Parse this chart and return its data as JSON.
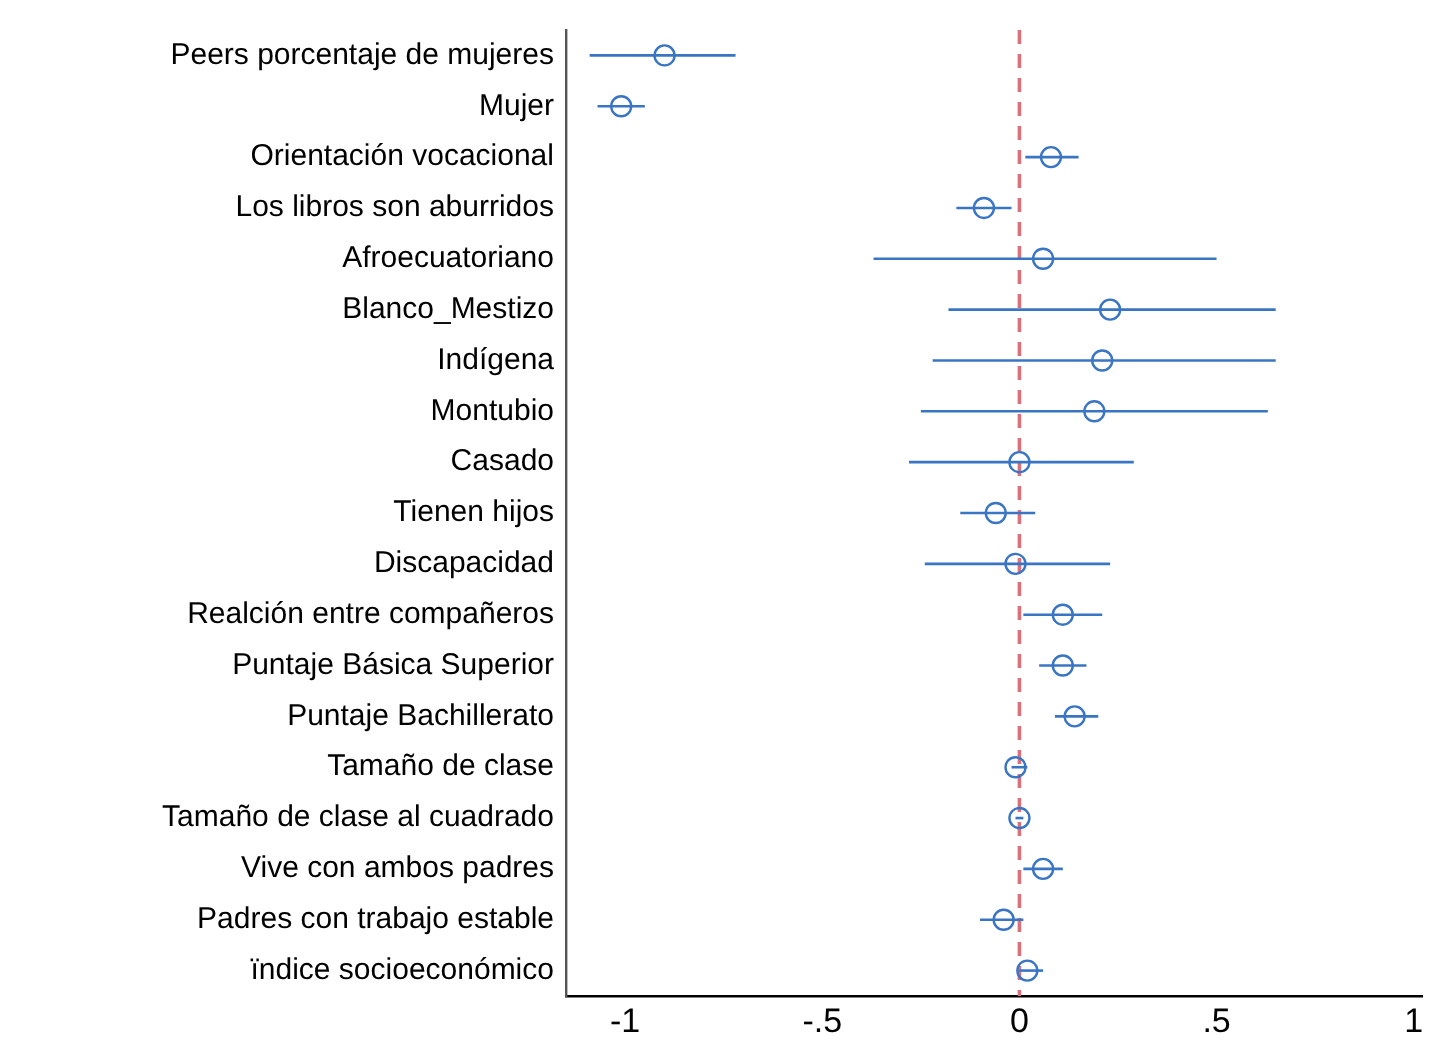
{
  "chart_data": {
    "type": "scatter",
    "categories": [
      "Peers porcentaje de mujeres",
      "Mujer",
      "Orientación vocacional",
      "Los libros son aburridos",
      "Afroecuatoriano",
      "Blanco_Mestizo",
      "Indígena",
      "Montubio",
      "Casado",
      "Tienen hijos",
      "Discapacidad",
      "Realción entre compañeros",
      "Puntaje Básica Superior",
      "Puntaje Bachillerato",
      "Tamaño de clase",
      "Tamaño de clase al cuadrado",
      "Vive con ambos padres",
      "Padres con trabajo estable",
      "ïndice socioeconómico"
    ],
    "orientation": "horizontal",
    "series": [
      {
        "color": "#3a75c4",
        "values": [
          -0.9,
          -1.01,
          0.08,
          -0.09,
          0.06,
          0.23,
          0.21,
          0.19,
          0,
          -0.06,
          -0.01,
          0.11,
          0.11,
          0.14,
          -0.01,
          0,
          0.06,
          -0.04,
          0.02
        ],
        "errors": [
          [
            -1.09,
            -0.72
          ],
          [
            -1.07,
            -0.95
          ],
          [
            0.015,
            0.15
          ],
          [
            -0.16,
            -0.02
          ],
          [
            -0.37,
            0.5
          ],
          [
            -0.18,
            0.65
          ],
          [
            -0.22,
            0.65
          ],
          [
            -0.25,
            0.63
          ],
          [
            -0.28,
            0.29
          ],
          [
            -0.15,
            0.04
          ],
          [
            -0.24,
            0.23
          ],
          [
            0.01,
            0.21
          ],
          [
            0.05,
            0.17
          ],
          [
            0.09,
            0.2
          ],
          [
            -0.02,
            0.02
          ],
          [
            -0.01,
            0.01
          ],
          [
            0.01,
            0.11
          ],
          [
            -0.1,
            0.01
          ],
          [
            0,
            0.06
          ]
        ]
      }
    ],
    "xlim": [
      -1.15,
      1.02
    ],
    "xticks": [
      -1,
      {
        "value": -0.5,
        "label": "-.5"
      },
      0,
      {
        "value": 0.5,
        "label": ".5"
      },
      1
    ],
    "ref_lines": [
      {
        "axis": "x",
        "value": 0,
        "color": "#d9707a",
        "line_style": "dashed"
      }
    ],
    "marker": "circle",
    "grid": false,
    "legend": false
  }
}
